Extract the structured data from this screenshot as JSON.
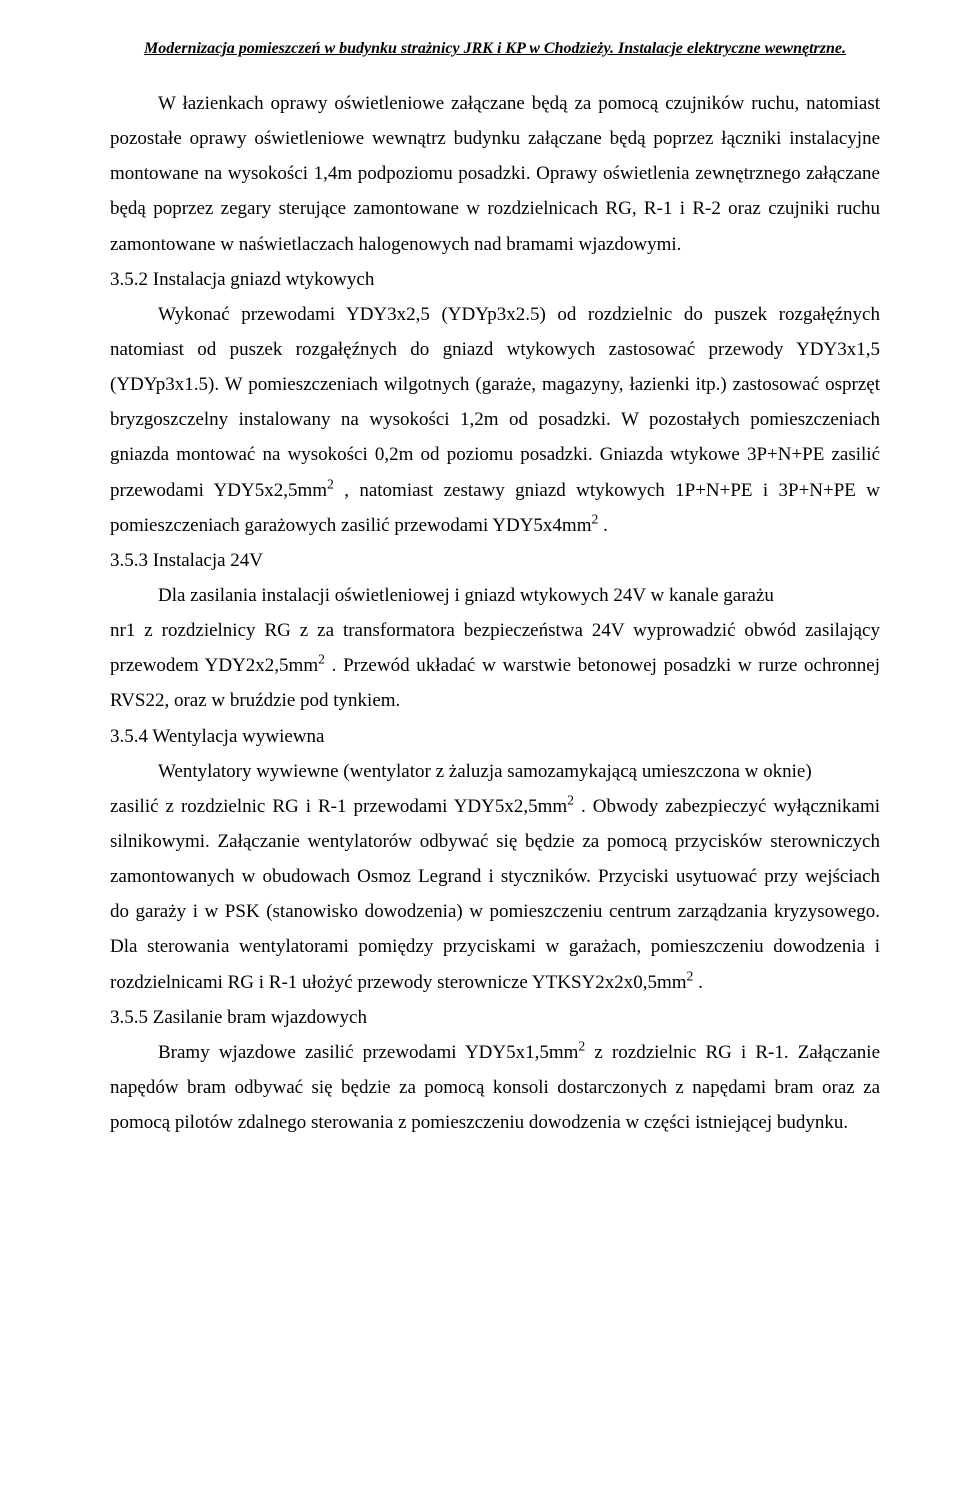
{
  "header": "Modernizacja pomieszczeń w budynku strażnicy JRK i KP w Chodzieży.  Instalacje elektryczne wewnętrzne.",
  "para1": "W łazienkach oprawy oświetleniowe załączane będą za pomocą czujników ruchu, natomiast pozostałe oprawy oświetleniowe wewnątrz budynku załączane będą poprzez łączniki instalacyjne montowane na wysokości 1,4m podpoziomu posadzki. Oprawy oświetlenia zewnętrznego załączane będą poprzez zegary sterujące zamontowane w rozdzielnicach RG, R-1 i R-2 oraz czujniki ruchu zamontowane w naświetlaczach halogenowych nad bramami wjazdowymi.",
  "s352_label": "3.5.2   Instalacja gniazd wtykowych",
  "s352_p1a": "Wykonać przewodami YDY3x2,5 (YDYp3x2.5) od rozdzielnic do puszek rozgałęźnych natomiast od puszek rozgałęźnych do gniazd wtykowych zastosować przewody YDY3x1,5 (YDYp3x1.5). W pomieszczeniach wilgotnych (garaże, magazyny, łazienki itp.) zastosować osprzęt bryzgoszczelny instalowany na wysokości 1,2m od posadzki. W pozostałych pomieszczeniach gniazda montować na wysokości 0,2m od poziomu posadzki. Gniazda wtykowe 3P+N+PE zasilić przewodami YDY5x2,5mm",
  "s352_p1b": " , natomiast zestawy gniazd wtykowych 1P+N+PE i 3P+N+PE w pomieszczeniach garażowych zasilić przewodami YDY5x4mm",
  "s352_p1c": " .",
  "s353_label": "3.5.3   Instalacja 24V",
  "s353_p1": "Dla zasilania instalacji oświetleniowej i gniazd wtykowych 24V w kanale garażu",
  "s353_p2a": "nr1 z rozdzielnicy RG z za transformatora bezpieczeństwa 24V wyprowadzić obwód zasilający przewodem YDY2x2,5mm",
  "s353_p2b": " . Przewód układać w warstwie betonowej posadzki w rurze ochronnej RVS22, oraz w bruździe pod tynkiem.",
  "s354_label": "3.5.4   Wentylacja wywiewna",
  "s354_p1": "Wentylatory wywiewne (wentylator z żaluzja samozamykającą umieszczona w oknie)",
  "s354_p2a": "zasilić z rozdzielnic   RG i R-1 przewodami YDY5x2,5mm",
  "s354_p2b": " . Obwody zabezpieczyć wyłącznikami silnikowymi. Załączanie wentylatorów odbywać się będzie za pomocą przycisków sterowniczych zamontowanych w obudowach Osmoz Legrand i styczników. Przyciski usytuować przy wejściach do garaży i w  PSK (stanowisko dowodzenia) w pomieszczeniu centrum zarządzania kryzysowego. Dla sterowania wentylatorami pomiędzy przyciskami w garażach, pomieszczeniu dowodzenia i rozdzielnicami RG i R-1 ułożyć przewody sterownicze YTKSY2x2x0,5mm",
  "s354_p2c": " .",
  "s355_label": "3.5.5   Zasilanie bram wjazdowych",
  "s355_p1a": "Bramy wjazdowe zasilić przewodami YDY5x1,5mm",
  "s355_p1b": " z rozdzielnic RG i R-1. Załączanie napędów bram odbywać się będzie za pomocą konsoli dostarczonych z napędami bram oraz za pomocą pilotów zdalnego sterowania z pomieszczeniu dowodzenia w części istniejącej budynku.",
  "sup2": "2"
}
